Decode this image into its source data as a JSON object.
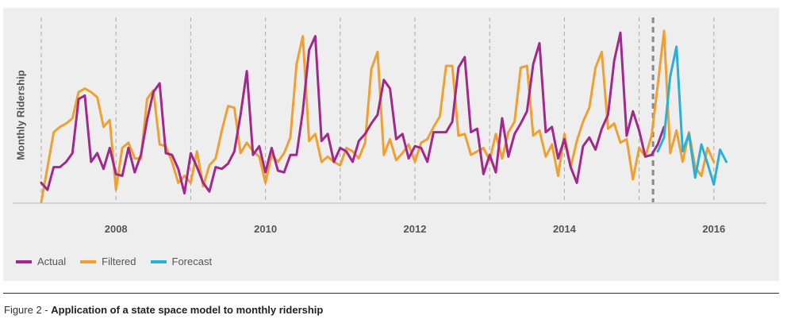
{
  "caption": {
    "prefix": "Figure 2 - ",
    "title": "Application of a state space model to monthly ridership"
  },
  "colors": {
    "actual": "#a3288c",
    "filtered": "#f0a030",
    "forecast": "#2ab0d8",
    "panel_bg": "#eeeeee",
    "grid": "#aaaaaa",
    "split_line": "#888888"
  },
  "chart_data": {
    "type": "line",
    "title": "",
    "xlabel": "",
    "ylabel": "Monthly Ridership",
    "x_ticks": [
      "2008",
      "2010",
      "2012",
      "2014",
      "2016"
    ],
    "x_start": "2007-01",
    "y_unit": "relative index (0-100, axis unlabeled)",
    "ylim": [
      0,
      100
    ],
    "forecast_start": "2015-04",
    "grid": "vertical dashed at each year",
    "legend_position": "bottom-left",
    "series": [
      {
        "name": "Actual",
        "start": "2007-01",
        "values": [
          8,
          4,
          17,
          17,
          20,
          25,
          56,
          58,
          20,
          25,
          16,
          28,
          13,
          12,
          28,
          14,
          24,
          44,
          60,
          65,
          25,
          24,
          16,
          2,
          25,
          17,
          8,
          3,
          17,
          16,
          19,
          26,
          47,
          72,
          24,
          29,
          14,
          28,
          15,
          14,
          24,
          24,
          49,
          84,
          92,
          32,
          36,
          20,
          28,
          26,
          20,
          32,
          36,
          42,
          47,
          67,
          62,
          33,
          36,
          22,
          29,
          28,
          20,
          37,
          37,
          37,
          43,
          74,
          80,
          37,
          39,
          13,
          24,
          14,
          45,
          23,
          36,
          42,
          49,
          76,
          88,
          37,
          40,
          22,
          33,
          17,
          8,
          29,
          34,
          27,
          39,
          47,
          78,
          94,
          35,
          49,
          38,
          23,
          24,
          30,
          40
        ]
      },
      {
        "name": "Filtered",
        "start": "2007-01",
        "values": [
          -3,
          17,
          37,
          40,
          42,
          45,
          60,
          62,
          60,
          57,
          40,
          44,
          4,
          28,
          31,
          22,
          22,
          56,
          61,
          30,
          29,
          20,
          8,
          12,
          8,
          26,
          6,
          18,
          22,
          38,
          52,
          51,
          25,
          31,
          26,
          23,
          8,
          24,
          20,
          25,
          34,
          76,
          92,
          32,
          36,
          20,
          23,
          20,
          18,
          28,
          26,
          22,
          31,
          73,
          83,
          24,
          33,
          21,
          25,
          30,
          20,
          31,
          33,
          40,
          46,
          75,
          75,
          35,
          36,
          24,
          26,
          28,
          21,
          36,
          22,
          37,
          43,
          74,
          75,
          35,
          38,
          23,
          30,
          12,
          36,
          17,
          32,
          43,
          51,
          74,
          83,
          39,
          42,
          31,
          33,
          10,
          28,
          23,
          35,
          64,
          95,
          25,
          38,
          20,
          37,
          17,
          12,
          28,
          20
        ]
      },
      {
        "name": "Forecast",
        "start": "2015-04",
        "values": [
          26,
          34,
          69,
          86,
          26,
          36,
          11,
          30,
          19,
          7,
          27,
          20
        ]
      }
    ]
  }
}
